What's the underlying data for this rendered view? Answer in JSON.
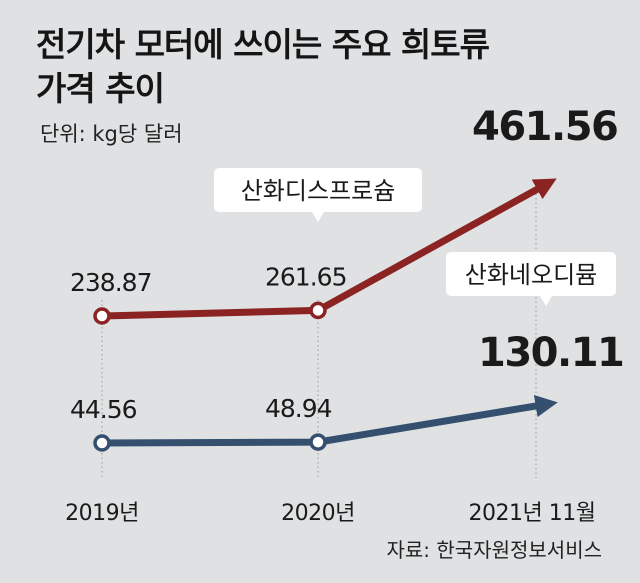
{
  "title_line1": "전기차 모터에 쓰이는 주요 희토류",
  "title_line2": "가격 추이",
  "unit": "단위: kg당 달러",
  "source": "자료: 한국자원정보서비스",
  "colors": {
    "background": "#dfe1e3",
    "series_red": "#8b2323",
    "series_blue": "#34506e"
  },
  "chart_data": {
    "type": "line",
    "categories": [
      "2019년",
      "2020년",
      "2021년 11월"
    ],
    "series": [
      {
        "name": "산화디스프로슘",
        "values": [
          238.87,
          261.65,
          461.56
        ],
        "value_labels": [
          "238.87",
          "261.65",
          "461.56"
        ]
      },
      {
        "name": "산화네오디뮴",
        "values": [
          44.56,
          48.94,
          130.11
        ],
        "value_labels": [
          "44.56",
          "48.94",
          "130.11"
        ]
      }
    ]
  }
}
